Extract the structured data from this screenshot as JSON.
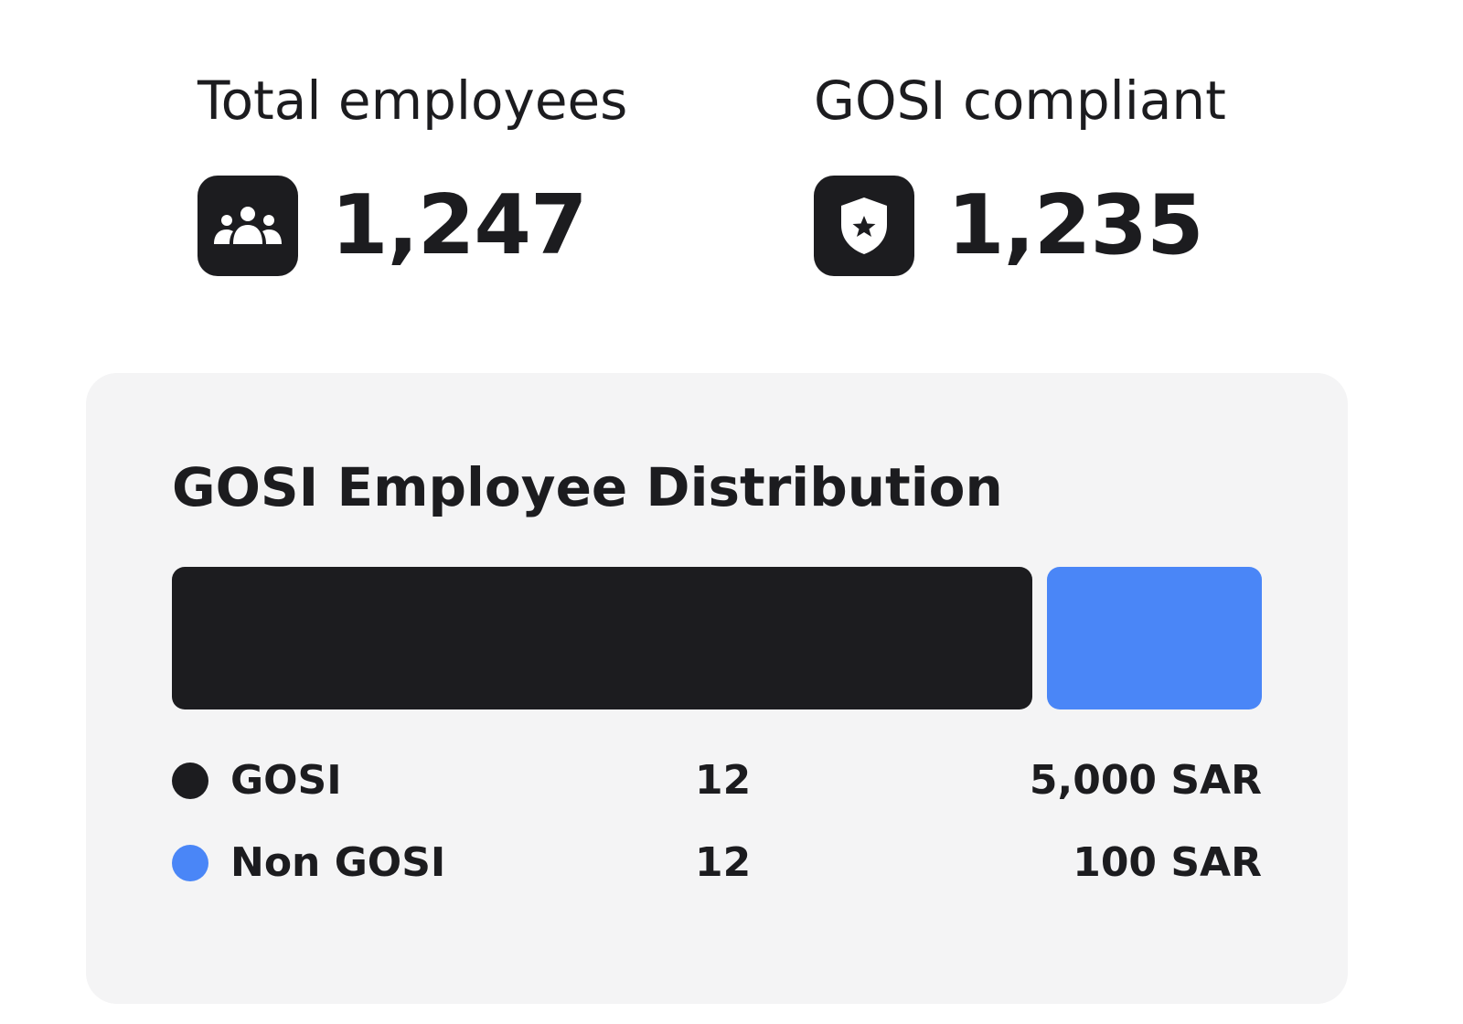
{
  "stats": {
    "total": {
      "label": "Total employees",
      "value": "1,247",
      "icon": "people-group-icon"
    },
    "gosi": {
      "label": "GOSI compliant",
      "value": "1,235",
      "icon": "shield-star-icon"
    }
  },
  "distribution": {
    "title": "GOSI Employee Distribution",
    "segments": [
      {
        "name": "GOSI",
        "count": "12",
        "amount": "5,000 SAR",
        "color": "#1c1c1f",
        "share": 0.8
      },
      {
        "name": "Non GOSI",
        "count": "12",
        "amount": "100 SAR",
        "color": "#4a86f7",
        "share": 0.2
      }
    ]
  }
}
